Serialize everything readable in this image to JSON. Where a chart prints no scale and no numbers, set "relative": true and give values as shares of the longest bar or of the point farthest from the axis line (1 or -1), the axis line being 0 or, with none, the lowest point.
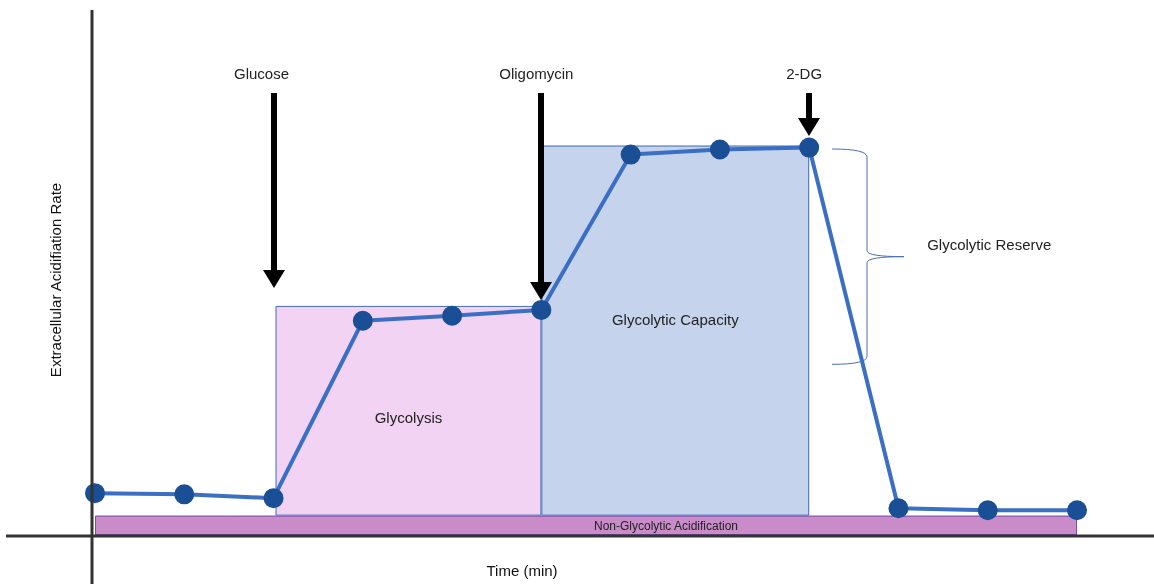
{
  "chart_data": {
    "type": "line",
    "xlabel": "Time (min)",
    "ylabel": "Extracellular Acidifiation Rate",
    "relative": true,
    "grid": false,
    "legend": false,
    "marker": "circle",
    "line_style": "solid",
    "categories": [
      null,
      null,
      null,
      null,
      null,
      null,
      null,
      null,
      null,
      null,
      null,
      null
    ],
    "series": [
      {
        "color": "#3a6fc4",
        "values": [
          0.108,
          0.105,
          0.095,
          0.553,
          0.566,
          0.581,
          0.982,
          0.995,
          1,
          0.069,
          0.064,
          0.064
        ]
      }
    ],
    "bands": [
      {
        "axis": "y",
        "from": 0,
        "to": 0.05,
        "label": "Non-Glycolytic Acidification",
        "color": "#c98cc8"
      }
    ],
    "annotations": [
      "Glucose",
      "Oligomycin",
      "2-DG",
      "Glycolysis",
      "Glycolytic Capacity",
      "Glycolytic Reserve"
    ]
  }
}
